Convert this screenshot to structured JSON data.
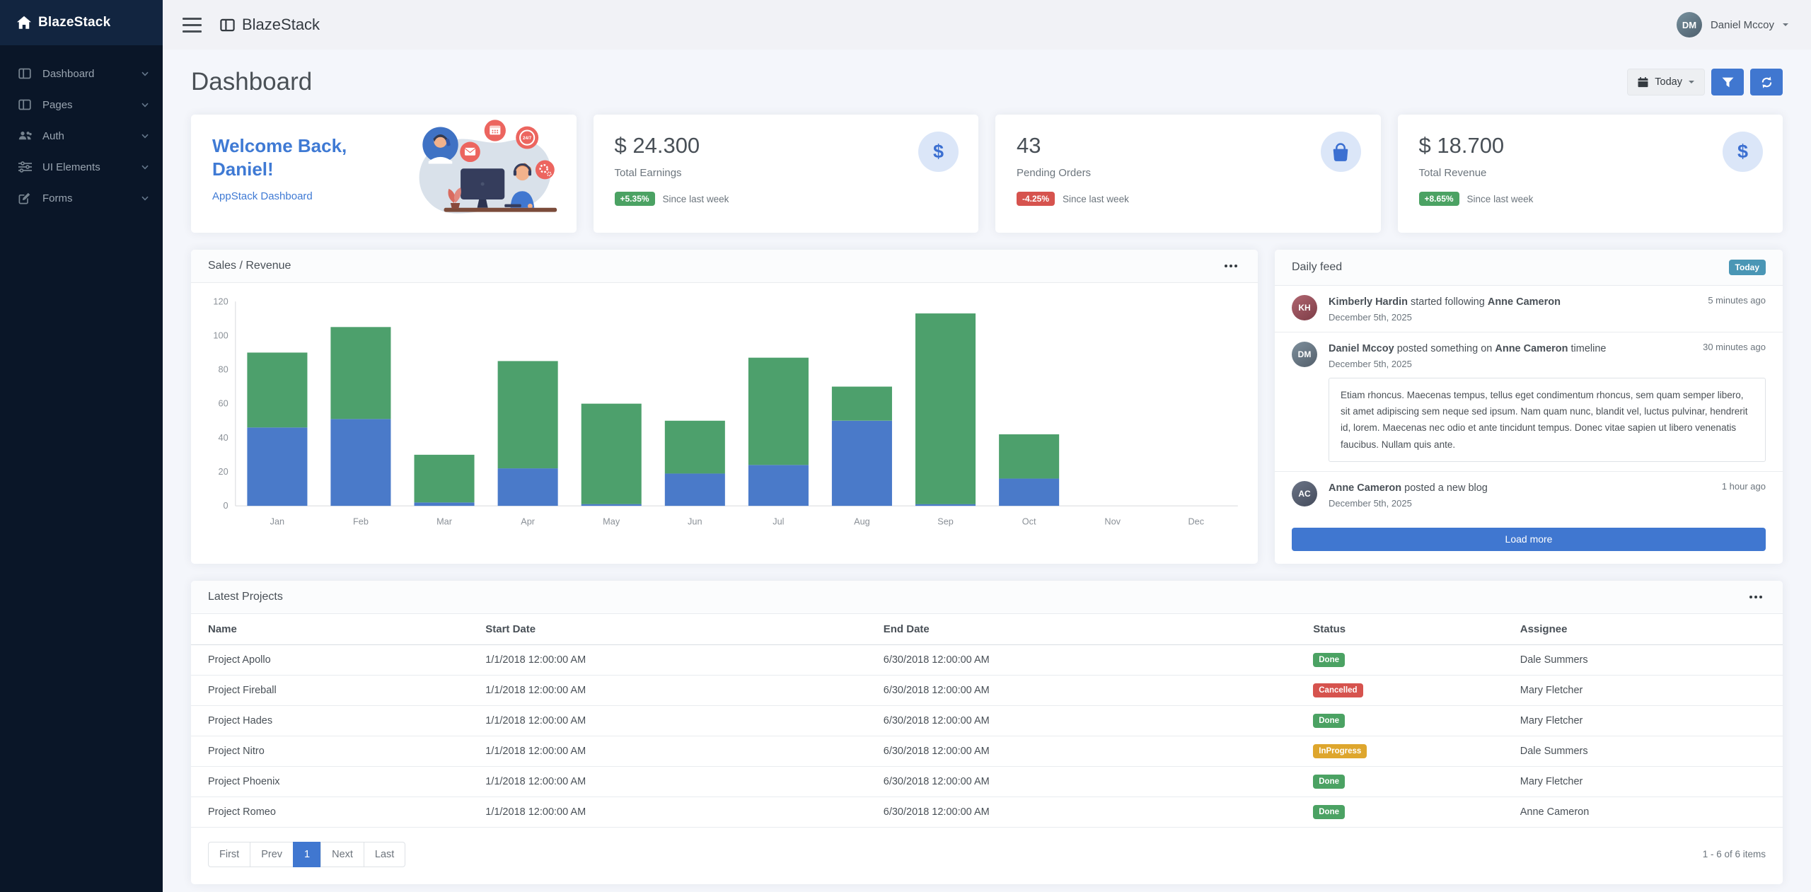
{
  "colors": {
    "primary": "#4077d0",
    "success": "#4BA263",
    "danger": "#D6534E",
    "warning": "#DEA62D",
    "info": "#4A96B5",
    "bar_blue": "#4A7AC9",
    "bar_green": "#4DA06C"
  },
  "sidebar": {
    "brand": "BlazeStack",
    "items": [
      {
        "label": "Dashboard",
        "icon": "columns-icon"
      },
      {
        "label": "Pages",
        "icon": "columns-icon"
      },
      {
        "label": "Auth",
        "icon": "users-icon"
      },
      {
        "label": "UI Elements",
        "icon": "sliders-icon"
      },
      {
        "label": "Forms",
        "icon": "edit-icon"
      }
    ]
  },
  "topbar": {
    "brand": "BlazeStack",
    "user": {
      "name": "Daniel Mccoy",
      "initials": "DM"
    }
  },
  "page": {
    "title": "Dashboard",
    "today_label": "Today"
  },
  "welcome": {
    "title_line1": "Welcome Back,",
    "title_line2": "Daniel!",
    "subtitle": "AppStack Dashboard"
  },
  "stats": [
    {
      "value": "$ 24.300",
      "label": "Total Earnings",
      "delta": "+5.35%",
      "delta_type": "success",
      "note": "Since last week",
      "icon": "dollar-icon"
    },
    {
      "value": "43",
      "label": "Pending Orders",
      "delta": "-4.25%",
      "delta_type": "danger",
      "note": "Since last week",
      "icon": "shopping-bag-icon"
    },
    {
      "value": "$ 18.700",
      "label": "Total Revenue",
      "delta": "+8.65%",
      "delta_type": "success",
      "note": "Since last week",
      "icon": "dollar-icon"
    }
  ],
  "chart_card": {
    "title": "Sales / Revenue"
  },
  "chart_data": {
    "type": "bar",
    "stacked": true,
    "title": "Sales / Revenue",
    "categories": [
      "Jan",
      "Feb",
      "Mar",
      "Apr",
      "May",
      "Jun",
      "Jul",
      "Aug",
      "Sep",
      "Oct",
      "Nov",
      "Dec"
    ],
    "series": [
      {
        "name": "Sales",
        "color": "#4A7AC9",
        "values": [
          46,
          51,
          2,
          22,
          1,
          19,
          24,
          50,
          1,
          16,
          0,
          0
        ]
      },
      {
        "name": "Revenue",
        "color": "#4DA06C",
        "values": [
          44,
          54,
          28,
          63,
          59,
          31,
          63,
          20,
          112,
          26,
          0,
          0
        ]
      }
    ],
    "xlabel": "",
    "ylabel": "",
    "ylim": [
      0,
      120
    ],
    "yticks": [
      0,
      20,
      40,
      60,
      80,
      100,
      120
    ],
    "grid": false,
    "legend": "none"
  },
  "feed": {
    "title": "Daily feed",
    "badge": "Today",
    "items": [
      {
        "initials": "KH",
        "actor": "Kimberly Hardin",
        "action": " started following ",
        "target": "Anne Cameron",
        "suffix": "",
        "date": "December 5th, 2025",
        "time": "5 minutes ago"
      },
      {
        "initials": "DM",
        "actor": "Daniel Mccoy",
        "action": " posted something on ",
        "target": "Anne Cameron",
        "suffix": " timeline",
        "date": "December 5th, 2025",
        "time": "30 minutes ago",
        "body": "Etiam rhoncus. Maecenas tempus, tellus eget condimentum rhoncus, sem quam semper libero, sit amet adipiscing sem neque sed ipsum. Nam quam nunc, blandit vel, luctus pulvinar, hendrerit id, lorem. Maecenas nec odio et ante tincidunt tempus. Donec vitae sapien ut libero venenatis faucibus. Nullam quis ante."
      },
      {
        "initials": "AC",
        "actor": "Anne Cameron",
        "action": " posted a new blog",
        "target": "",
        "suffix": "",
        "date": "December 5th, 2025",
        "time": "1 hour ago"
      }
    ],
    "load_more": "Load more"
  },
  "projects": {
    "title": "Latest Projects",
    "columns": [
      "Name",
      "Start Date",
      "End Date",
      "Status",
      "Assignee"
    ],
    "rows": [
      {
        "name": "Project Apollo",
        "start": "1/1/2018 12:00:00 AM",
        "end": "6/30/2018 12:00:00 AM",
        "status": {
          "label": "Done",
          "type": "success"
        },
        "assignee": "Dale Summers"
      },
      {
        "name": "Project Fireball",
        "start": "1/1/2018 12:00:00 AM",
        "end": "6/30/2018 12:00:00 AM",
        "status": {
          "label": "Cancelled",
          "type": "danger"
        },
        "assignee": "Mary Fletcher"
      },
      {
        "name": "Project Hades",
        "start": "1/1/2018 12:00:00 AM",
        "end": "6/30/2018 12:00:00 AM",
        "status": {
          "label": "Done",
          "type": "success"
        },
        "assignee": "Mary Fletcher"
      },
      {
        "name": "Project Nitro",
        "start": "1/1/2018 12:00:00 AM",
        "end": "6/30/2018 12:00:00 AM",
        "status": {
          "label": "InProgress",
          "type": "warning"
        },
        "assignee": "Dale Summers"
      },
      {
        "name": "Project Phoenix",
        "start": "1/1/2018 12:00:00 AM",
        "end": "6/30/2018 12:00:00 AM",
        "status": {
          "label": "Done",
          "type": "success"
        },
        "assignee": "Mary Fletcher"
      },
      {
        "name": "Project Romeo",
        "start": "1/1/2018 12:00:00 AM",
        "end": "6/30/2018 12:00:00 AM",
        "status": {
          "label": "Done",
          "type": "success"
        },
        "assignee": "Anne Cameron"
      }
    ],
    "pagination": [
      "First",
      "Prev",
      "1",
      "Next",
      "Last"
    ],
    "active_page": "1",
    "summary": "1 - 6 of 6 items"
  }
}
